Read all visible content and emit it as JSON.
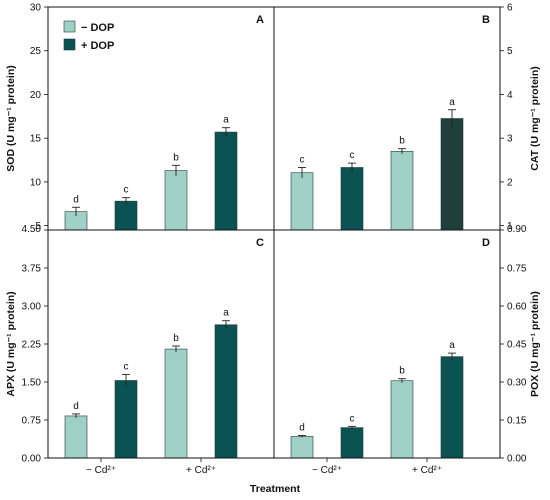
{
  "colors": {
    "light": "#9ed0c6",
    "dark": "#0b5252",
    "dark_alt": "#1f403a",
    "stroke": "#2a3a38"
  },
  "legend": [
    {
      "label": "− DOP",
      "color": "#9ed0c6"
    },
    {
      "label": "+ DOP",
      "color": "#0b5252"
    }
  ],
  "chart_data": [
    {
      "type": "bar",
      "panel": "A",
      "y_side": "left",
      "ylabel": "SOD (U mg⁻¹ protein)",
      "ylim": [
        4.5,
        30
      ],
      "ytick_labels": [
        "4.50",
        "5",
        "10",
        "15",
        "20",
        "25",
        "30"
      ],
      "ytick_values": [
        4.5,
        5,
        10,
        15,
        20,
        25,
        30
      ],
      "categories": [
        "− Cd²⁺",
        "+ Cd²⁺"
      ],
      "series": [
        {
          "name": "− DOP",
          "values": [
            6.6,
            11.3
          ],
          "errors": [
            0.5,
            0.6
          ],
          "letters": [
            "d",
            "b"
          ]
        },
        {
          "name": "+ DOP",
          "values": [
            7.8,
            15.7
          ],
          "errors": [
            0.4,
            0.5
          ],
          "letters": [
            "c",
            "a"
          ]
        }
      ]
    },
    {
      "type": "bar",
      "panel": "B",
      "y_side": "right",
      "ylabel": "CAT (U mg⁻¹ protein)",
      "ylim": [
        0.9,
        6
      ],
      "ytick_labels": [
        "0.90",
        "1",
        "2",
        "3",
        "4",
        "5",
        "6"
      ],
      "ytick_values": [
        0.9,
        1,
        2,
        3,
        4,
        5,
        6
      ],
      "categories": [
        "− Cd²⁺",
        "+ Cd²⁺"
      ],
      "series": [
        {
          "name": "− DOP",
          "values": [
            2.21,
            2.7
          ],
          "errors": [
            0.12,
            0.06
          ],
          "letters": [
            "c",
            "b"
          ]
        },
        {
          "name": "+ DOP",
          "values": [
            2.33,
            3.45
          ],
          "errors": [
            0.1,
            0.2
          ],
          "letters": [
            "c",
            "a"
          ]
        }
      ]
    },
    {
      "type": "bar",
      "panel": "C",
      "y_side": "left",
      "ylabel": "APX (U mg⁻¹ protein)",
      "ylim": [
        0,
        4.5
      ],
      "ytick_labels": [
        "0.00",
        "0.75",
        "1.50",
        "2.25",
        "3.00",
        "3.75"
      ],
      "ytick_values": [
        0,
        0.75,
        1.5,
        2.25,
        3.0,
        3.75
      ],
      "categories": [
        "− Cd²⁺",
        "+ Cd²⁺"
      ],
      "series": [
        {
          "name": "− DOP",
          "values": [
            0.83,
            2.15
          ],
          "errors": [
            0.04,
            0.06
          ],
          "letters": [
            "d",
            "b"
          ]
        },
        {
          "name": "+ DOP",
          "values": [
            1.53,
            2.63
          ],
          "errors": [
            0.12,
            0.08
          ],
          "letters": [
            "c",
            "a"
          ]
        }
      ]
    },
    {
      "type": "bar",
      "panel": "D",
      "y_side": "right",
      "ylabel": "POX (U mg⁻¹ protein)",
      "ylim": [
        0,
        0.9
      ],
      "ytick_labels": [
        "0.00",
        "0.15",
        "0.30",
        "0.45",
        "0.60",
        "0.75"
      ],
      "ytick_values": [
        0,
        0.15,
        0.3,
        0.45,
        0.6,
        0.75
      ],
      "categories": [
        "− Cd²⁺",
        "+ Cd²⁺"
      ],
      "series": [
        {
          "name": "− DOP",
          "values": [
            0.085,
            0.305
          ],
          "errors": [
            0.004,
            0.008
          ],
          "letters": [
            "d",
            "b"
          ]
        },
        {
          "name": "+ DOP",
          "values": [
            0.12,
            0.4
          ],
          "errors": [
            0.005,
            0.014
          ],
          "letters": [
            "c",
            "a"
          ]
        }
      ]
    }
  ],
  "xlabel": "Treatment"
}
